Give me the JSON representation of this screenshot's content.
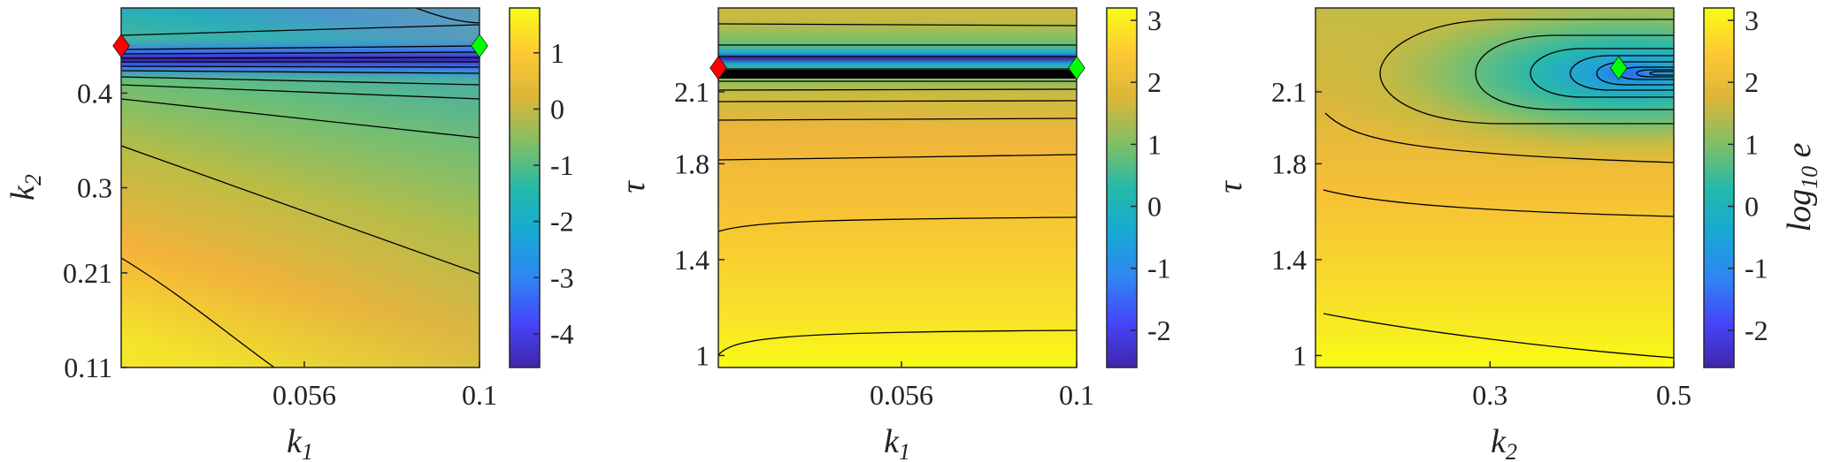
{
  "chart_data": [
    {
      "type": "heatmap",
      "subtype": "contour",
      "xlabel": "k",
      "xlabel_sub": "1",
      "ylabel": "k",
      "ylabel_sub": "2",
      "xlim": [
        0.01,
        0.1
      ],
      "ylim": [
        0.11,
        0.49
      ],
      "xticks": [
        0.056,
        0.1
      ],
      "xtick_labels": [
        "0.056",
        "0.1"
      ],
      "yticks": [
        0.11,
        0.21,
        0.3,
        0.4
      ],
      "ytick_labels": [
        "0.11",
        "0.21",
        "0.3",
        "0.4"
      ],
      "colorbar": {
        "range": [
          -4.6,
          1.8
        ],
        "ticks": [
          1,
          0,
          -1,
          -2,
          -3,
          -4
        ],
        "tick_labels": [
          "1",
          "0",
          "-1",
          "-2",
          "-3",
          "-4"
        ]
      },
      "markers": [
        {
          "color": "#ff0000",
          "x": 0.01,
          "y": 0.45
        },
        {
          "color": "#00ff00",
          "x": 0.1,
          "y": 0.45
        }
      ],
      "grid": false
    },
    {
      "type": "heatmap",
      "subtype": "contour",
      "xlabel": "k",
      "xlabel_sub": "1",
      "ylabel": "τ",
      "xlim": [
        0.01,
        0.1
      ],
      "ylim": [
        0.95,
        2.45
      ],
      "xticks": [
        0.056,
        0.1
      ],
      "xtick_labels": [
        "0.056",
        "0.1"
      ],
      "yticks": [
        1,
        1.4,
        1.8,
        2.1
      ],
      "ytick_labels": [
        "1",
        "1.4",
        "1.8",
        "2.1"
      ],
      "colorbar": {
        "range": [
          -2.6,
          3.2
        ],
        "ticks": [
          3,
          2,
          1,
          0,
          -1,
          -2
        ],
        "tick_labels": [
          "3",
          "2",
          "1",
          "0",
          "-1",
          "-2"
        ]
      },
      "markers": [
        {
          "color": "#ff0000",
          "x": 0.01,
          "y": 2.2
        },
        {
          "color": "#00ff00",
          "x": 0.1,
          "y": 2.2
        }
      ],
      "grid": false
    },
    {
      "type": "heatmap",
      "subtype": "contour",
      "xlabel": "k",
      "xlabel_sub": "2",
      "ylabel": "τ",
      "xlim": [
        0.11,
        0.5
      ],
      "ylim": [
        0.95,
        2.45
      ],
      "xticks": [
        0.3,
        0.5
      ],
      "xtick_labels": [
        "0.3",
        "0.5"
      ],
      "yticks": [
        1,
        1.4,
        1.8,
        2.1
      ],
      "ytick_labels": [
        "1",
        "1.4",
        "1.8",
        "2.1"
      ],
      "colorbar": {
        "range": [
          -2.6,
          3.2
        ],
        "ticks": [
          3,
          2,
          1,
          0,
          -1,
          -2
        ],
        "tick_labels": [
          "3",
          "2",
          "1",
          "0",
          "-1",
          "-2"
        ],
        "label": "log",
        "label_sub": "10",
        "label_suffix": " e"
      },
      "markers": [
        {
          "color": "#00ff00",
          "x": 0.44,
          "y": 2.2
        }
      ],
      "grid": false
    }
  ]
}
